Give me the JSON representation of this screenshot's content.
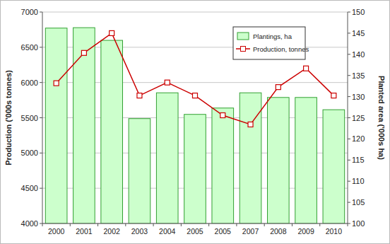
{
  "chart_data": {
    "type": "bar",
    "categories": [
      "2000",
      "2001",
      "2002",
      "2003",
      "2004",
      "2005",
      "2005",
      "2007",
      "2008",
      "2009",
      "2010"
    ],
    "series": [
      {
        "name": "Plantings, ha",
        "type": "bar",
        "color": "#ccffcc",
        "axis": "y2",
        "values": [
          146.2,
          146.3,
          143.3,
          124.8,
          130.9,
          125.8,
          127.3,
          130.9,
          129.8,
          129.8,
          126.9
        ]
      },
      {
        "name": "Production, tonnes",
        "type": "line",
        "color": "#cc0000",
        "marker": "square",
        "values": [
          5990,
          6420,
          6700,
          5815,
          6000,
          5815,
          5535,
          5405,
          5935,
          6200,
          5815
        ]
      }
    ],
    "y_label": "Production ('000s tonnes)",
    "y2_label": "Planted area ('000s ha)",
    "ylim": [
      4000,
      7000
    ],
    "yticks": [
      4000,
      4500,
      5000,
      5500,
      6000,
      6500,
      7000
    ],
    "y2lim": [
      100,
      150
    ],
    "y2ticks": [
      100,
      105,
      110,
      115,
      120,
      125,
      130,
      135,
      140,
      145,
      150
    ],
    "grid": true,
    "legend": "upper right"
  }
}
